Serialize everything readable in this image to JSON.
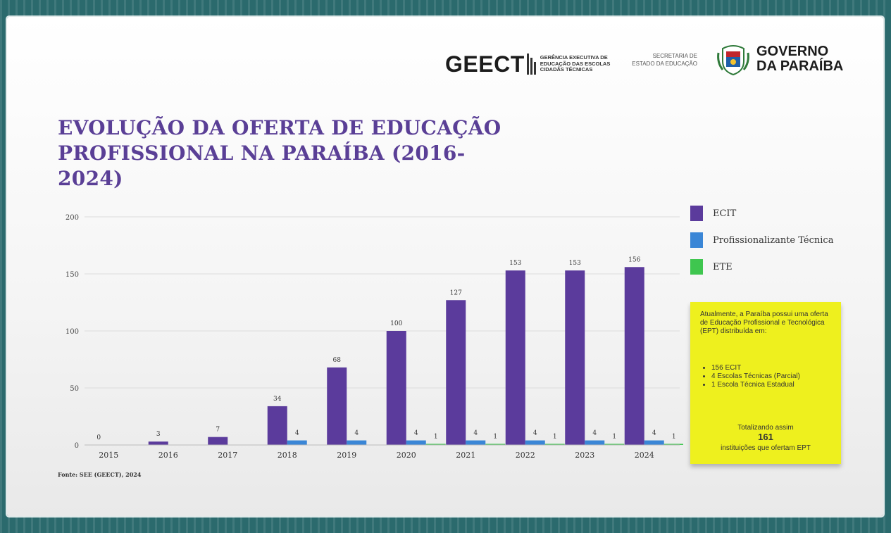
{
  "header": {
    "geect_logo": "GEECT",
    "geect_subtitle": "Gerência Executiva de Educação das Escolas Cidadãs Técnicas",
    "secretaria": "Secretaria de Estado da Educação",
    "governo_line1": "GOVERNO",
    "governo_line2": "DA PARAÍBA"
  },
  "title_line1": "EVOLUÇÃO DA OFERTA DE EDUCAÇÃO",
  "title_line2": "PROFISSIONAL NA PARAÍBA (2016-2024)",
  "source": "Fonte: SEE (GEECT), 2024",
  "chart_data": {
    "type": "bar",
    "categories": [
      "2015",
      "2016",
      "2017",
      "2018",
      "2019",
      "2020",
      "2021",
      "2022",
      "2023",
      "2024"
    ],
    "series": [
      {
        "name": "ECIT",
        "values": [
          0,
          3,
          7,
          34,
          68,
          100,
          127,
          153,
          153,
          156
        ],
        "labels": [
          "0",
          "3",
          "7",
          "34",
          "68",
          "100",
          "127",
          "153",
          "153",
          "156"
        ],
        "color": "#5b3b9c"
      },
      {
        "name": "Profissionalizante Técnica",
        "values": [
          0,
          0,
          0,
          4,
          4,
          4,
          4,
          4,
          4,
          4
        ],
        "labels": [
          "",
          "",
          "",
          "4",
          "4",
          "4",
          "4",
          "4",
          "4",
          "4"
        ],
        "color": "#3a86d6"
      },
      {
        "name": "ETE",
        "values": [
          0,
          0,
          0,
          0,
          0,
          1,
          1,
          1,
          1,
          1
        ],
        "labels": [
          "",
          "",
          "",
          "",
          "",
          "1",
          "1",
          "1",
          "1",
          "1"
        ],
        "color": "#3fc64f"
      }
    ],
    "yticks": [
      "0",
      "50",
      "100",
      "150",
      "200"
    ],
    "ylim": [
      0,
      200
    ],
    "grid": true,
    "legend_position": "right"
  },
  "note": {
    "intro": "Atualmente, a Paraíba possui uma oferta de Educação Profissional e Tecnológica (EPT) distribuída em:",
    "items": [
      "156 ECIT",
      "4 Escolas Técnicas (Parcial)",
      "1 Escola Técnica Estadual"
    ],
    "total_pre": "Totalizando assim",
    "total_number": "161",
    "total_post": "instituições que ofertam EPT"
  }
}
